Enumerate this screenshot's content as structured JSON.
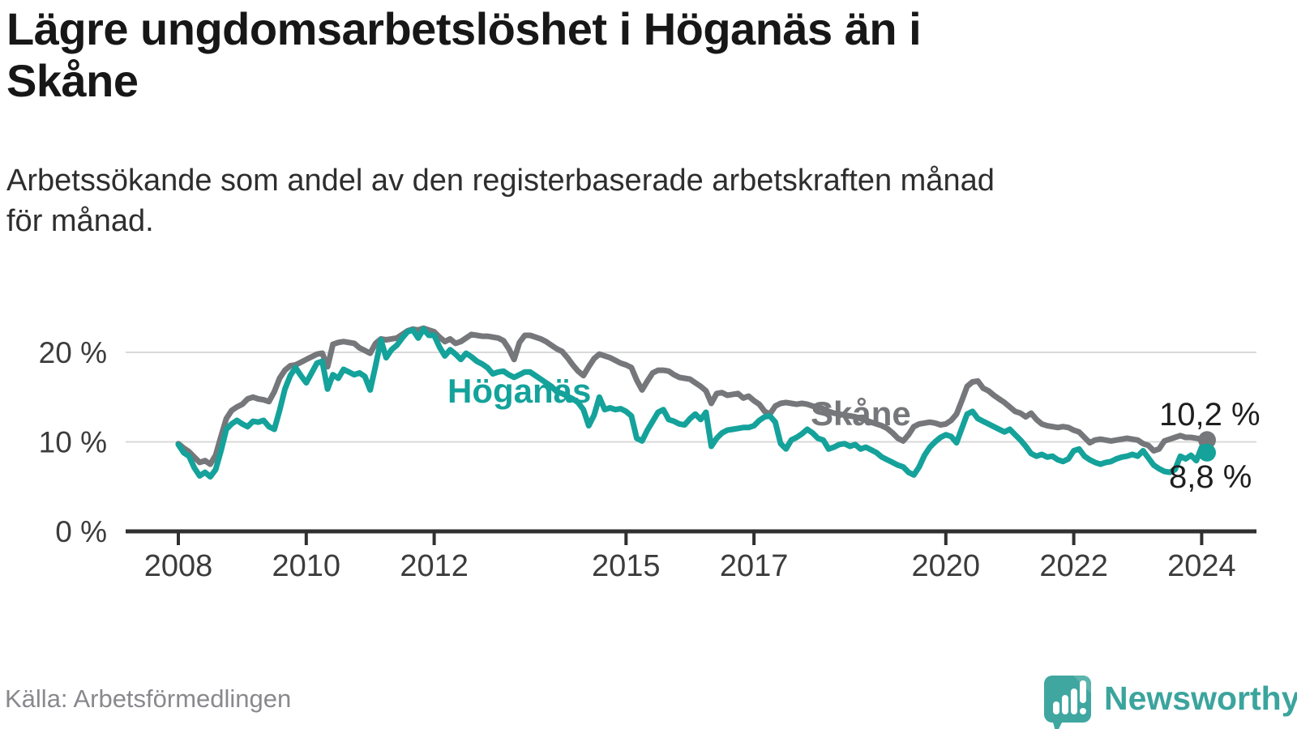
{
  "header": {
    "title_line1": "Lägre ungdomsarbetslöshet i Höganäs än i",
    "title_line2": "Skåne",
    "subtitle_line1": "Arbetssökande som andel av den registerbaserade arbetskraften månad",
    "subtitle_line2": "för månad."
  },
  "footer": {
    "source": "Källa: Arbetsförmedlingen"
  },
  "branding": {
    "logo_text": "Newsworthy",
    "logo_color": "#3BA49D",
    "logo_icon": "speech-bubble-with-bar-chart-and-exclamation"
  },
  "chart_data": {
    "type": "line",
    "title": "Lägre ungdomsarbetslöshet i Höganäs än i Skåne",
    "subtitle": "Arbetssökande som andel av den registerbaserade arbetskraften månad för månad.",
    "unit": "%",
    "x_start_year": 2008,
    "points_per_year": 12,
    "x_end": "2024-02",
    "ylim": [
      0,
      24
    ],
    "grid": true,
    "legend_position": "inline-labels",
    "y_ticks": [
      {
        "value": 0,
        "label": "0 %"
      },
      {
        "value": 10,
        "label": "10 %"
      },
      {
        "value": 20,
        "label": "20 %"
      }
    ],
    "x_ticks": [
      {
        "year": 2008,
        "label": "2008"
      },
      {
        "year": 2010,
        "label": "2010"
      },
      {
        "year": 2012,
        "label": "2012"
      },
      {
        "year": 2015,
        "label": "2015"
      },
      {
        "year": 2017,
        "label": "2017"
      },
      {
        "year": 2020,
        "label": "2020"
      },
      {
        "year": 2022,
        "label": "2022"
      },
      {
        "year": 2024,
        "label": "2024"
      }
    ],
    "series": [
      {
        "name": "Skåne",
        "color": "#76777B",
        "end_label": "10,2 %",
        "end_value": 10.2,
        "values": [
          9.8,
          9.3,
          8.9,
          8.3,
          7.7,
          7.9,
          7.5,
          8.5,
          10.6,
          12.6,
          13.5,
          13.9,
          14.2,
          14.8,
          15.0,
          14.8,
          14.7,
          14.5,
          15.6,
          17.1,
          18.0,
          18.5,
          18.6,
          18.9,
          19.2,
          19.5,
          19.8,
          19.9,
          18.4,
          20.9,
          21.1,
          21.2,
          21.1,
          21.0,
          20.5,
          20.2,
          19.9,
          21.0,
          21.5,
          21.4,
          21.5,
          21.6,
          22.0,
          22.4,
          22.6,
          22.5,
          22.7,
          22.5,
          22.3,
          21.7,
          21.2,
          21.5,
          21.0,
          21.2,
          21.6,
          22.0,
          21.9,
          21.8,
          21.8,
          21.7,
          21.6,
          21.3,
          20.4,
          19.2,
          21.1,
          21.9,
          21.9,
          21.7,
          21.5,
          21.2,
          20.8,
          20.4,
          20.1,
          19.4,
          18.6,
          17.9,
          17.4,
          18.4,
          19.3,
          19.8,
          19.6,
          19.4,
          19.1,
          18.8,
          18.6,
          18.3,
          16.9,
          15.8,
          16.8,
          17.7,
          18.0,
          18.0,
          17.9,
          17.5,
          17.2,
          17.1,
          17.0,
          16.6,
          16.2,
          15.7,
          14.3,
          15.4,
          15.5,
          15.2,
          15.3,
          15.4,
          14.9,
          15.1,
          14.6,
          14.2,
          13.4,
          13.1,
          14.0,
          14.3,
          14.4,
          14.3,
          14.2,
          14.3,
          14.2,
          14.0,
          13.9,
          13.7,
          13.4,
          13.2,
          13.1,
          13.0,
          12.9,
          12.8,
          12.6,
          12.4,
          12.2,
          12.0,
          11.8,
          11.5,
          11.0,
          10.4,
          10.1,
          10.8,
          11.7,
          12.0,
          12.1,
          12.2,
          12.1,
          11.9,
          12.0,
          12.4,
          13.1,
          14.6,
          16.2,
          16.7,
          16.8,
          16.0,
          15.7,
          15.2,
          14.8,
          14.4,
          13.9,
          13.4,
          13.2,
          12.8,
          13.2,
          12.5,
          12.0,
          11.8,
          11.7,
          11.6,
          11.7,
          11.6,
          11.3,
          11.1,
          10.5,
          9.9,
          10.2,
          10.3,
          10.2,
          10.1,
          10.2,
          10.3,
          10.4,
          10.3,
          10.2,
          9.8,
          9.6,
          9.0,
          9.2,
          10.1,
          10.3,
          10.5,
          10.7,
          10.5,
          10.5,
          10.4,
          10.3,
          10.2
        ]
      },
      {
        "name": "Höganäs",
        "color": "#14A29B",
        "end_label": "8,8 %",
        "end_value": 8.8,
        "values": [
          9.7,
          8.8,
          8.4,
          7.1,
          6.2,
          6.6,
          6.1,
          6.9,
          9.0,
          11.4,
          12.0,
          12.4,
          12.0,
          11.7,
          12.3,
          12.2,
          12.4,
          11.7,
          11.4,
          13.5,
          15.9,
          17.4,
          18.3,
          17.4,
          16.6,
          17.7,
          18.8,
          19.0,
          15.9,
          17.5,
          17.1,
          18.1,
          17.8,
          17.5,
          17.7,
          17.3,
          15.8,
          18.5,
          21.4,
          19.4,
          20.3,
          20.8,
          21.6,
          22.3,
          22.5,
          21.6,
          22.6,
          21.9,
          21.9,
          20.6,
          19.6,
          20.3,
          19.8,
          19.2,
          19.9,
          19.5,
          19.0,
          18.7,
          18.3,
          17.6,
          17.8,
          17.9,
          17.5,
          17.2,
          17.5,
          17.8,
          17.8,
          17.4,
          17.0,
          16.6,
          16.2,
          15.6,
          15.4,
          15.1,
          14.8,
          14.4,
          13.6,
          11.8,
          13.0,
          15.0,
          13.6,
          13.8,
          13.6,
          13.7,
          13.4,
          12.9,
          10.4,
          10.1,
          11.3,
          12.3,
          13.3,
          13.6,
          12.5,
          12.3,
          12.0,
          11.9,
          12.6,
          13.1,
          12.5,
          13.3,
          9.5,
          10.4,
          11.0,
          11.3,
          11.4,
          11.5,
          11.6,
          11.6,
          11.8,
          12.4,
          12.8,
          12.9,
          12.2,
          9.8,
          9.2,
          10.2,
          10.5,
          10.9,
          11.4,
          11.0,
          10.4,
          10.2,
          9.2,
          9.4,
          9.7,
          9.8,
          9.5,
          9.7,
          9.2,
          9.4,
          9.1,
          8.8,
          8.3,
          8.0,
          7.7,
          7.4,
          7.2,
          6.6,
          6.3,
          7.2,
          8.5,
          9.4,
          10.0,
          10.5,
          10.8,
          10.6,
          9.9,
          11.5,
          13.1,
          13.4,
          12.6,
          12.3,
          12.0,
          11.7,
          11.4,
          11.1,
          11.4,
          10.8,
          10.2,
          9.5,
          8.7,
          8.4,
          8.6,
          8.3,
          8.4,
          8.0,
          7.8,
          8.1,
          9.0,
          9.2,
          8.4,
          8.0,
          7.7,
          7.5,
          7.7,
          7.8,
          8.1,
          8.3,
          8.4,
          8.6,
          8.4,
          9.0,
          8.2,
          7.4,
          7.0,
          6.7,
          6.6,
          6.9,
          8.4,
          8.1,
          8.5,
          7.9,
          9.4,
          8.8
        ]
      }
    ]
  }
}
